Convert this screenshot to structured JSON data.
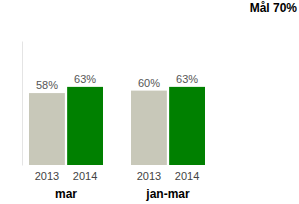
{
  "chart_data": {
    "type": "bar",
    "title": "Mål 70%",
    "categories": [
      "mar",
      "jan-mar"
    ],
    "series": [
      {
        "name": "2013",
        "color": "#c8c8b9",
        "values": [
          58,
          60
        ],
        "value_labels": [
          "58%",
          "60%"
        ]
      },
      {
        "name": "2014",
        "color": "#008000",
        "values": [
          63,
          63
        ],
        "value_labels": [
          "63%",
          "63%"
        ]
      }
    ],
    "ylim": [
      0,
      100
    ],
    "yticks": [],
    "tick_labels": "x",
    "data_labels": true,
    "grid": false
  }
}
